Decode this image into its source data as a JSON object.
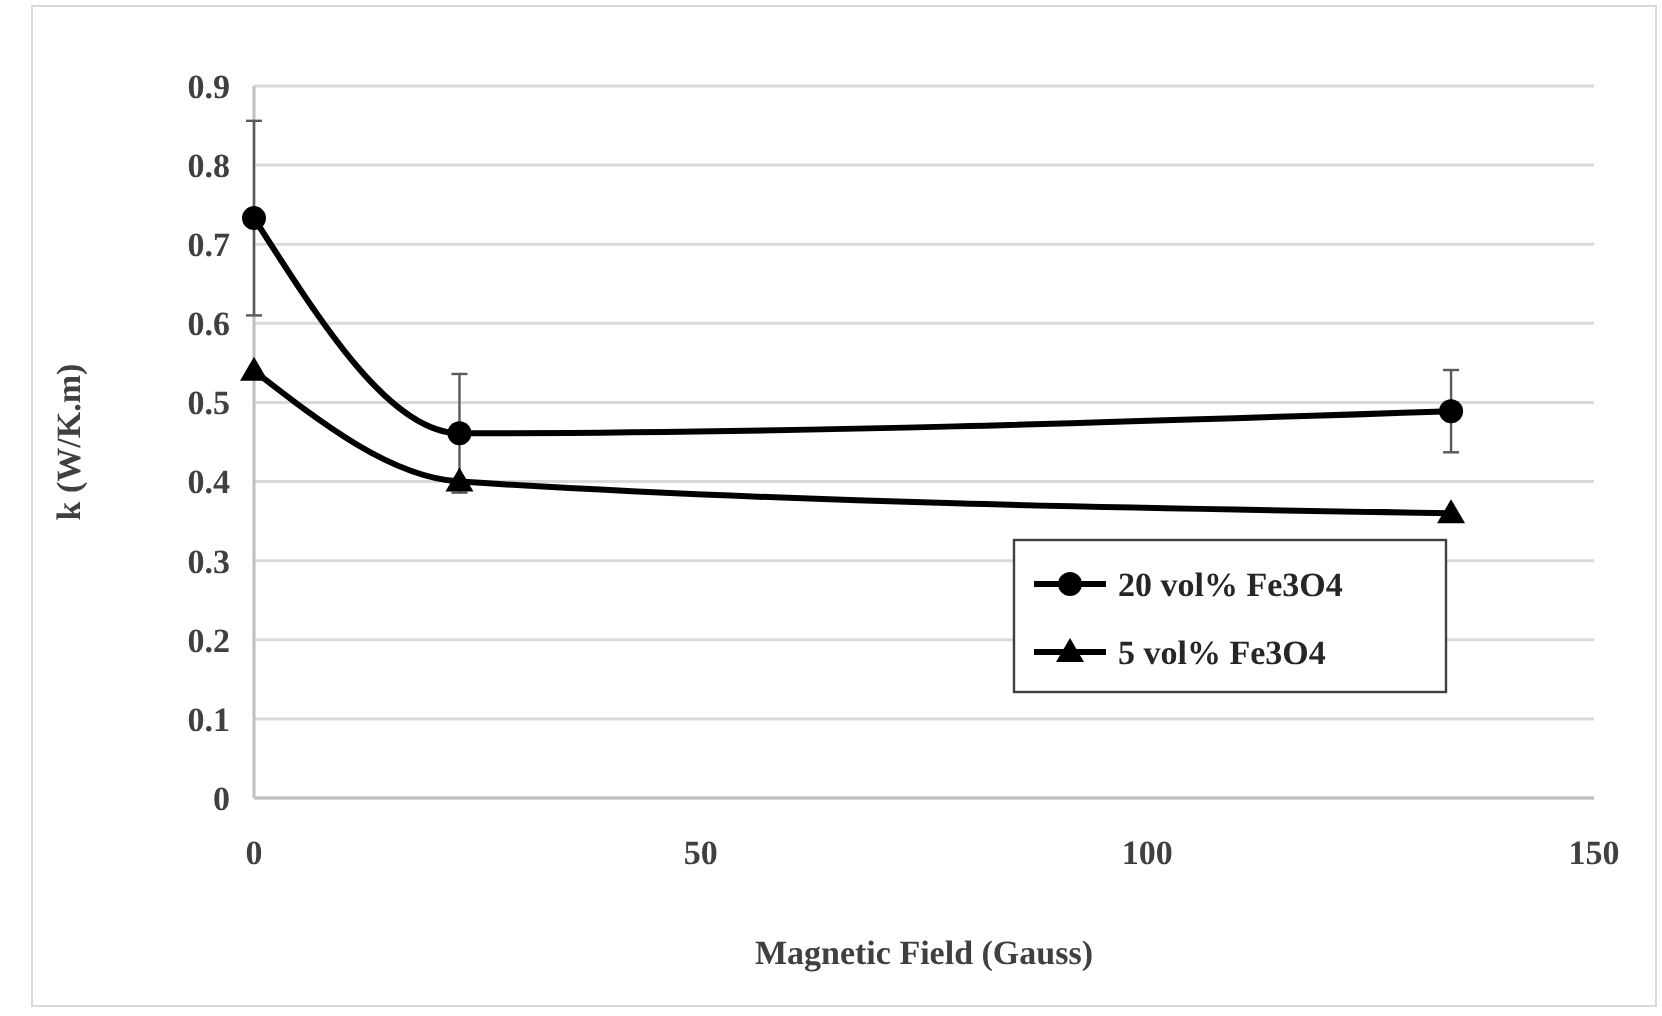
{
  "chart_data": {
    "type": "line",
    "xlabel": "Magnetic Field (Gauss)",
    "ylabel": "k (W/K.m)",
    "x": [
      0,
      23,
      134
    ],
    "series": [
      {
        "name": "20 vol% Fe3O4",
        "color": "#000000",
        "marker": "circle",
        "values": [
          0.733,
          0.461,
          0.489
        ],
        "errors": [
          0.123,
          0.075,
          0.052
        ]
      },
      {
        "name": "5 vol% Fe3O4",
        "color": "#000000",
        "marker": "triangle",
        "values": [
          0.54,
          0.4,
          0.36
        ]
      }
    ],
    "xlim": [
      0,
      150
    ],
    "xticks": [
      0,
      50,
      100,
      150
    ],
    "ylim": [
      0,
      0.9
    ],
    "yticks": [
      0,
      0.1,
      0.2,
      0.3,
      0.4,
      0.5,
      0.6,
      0.7,
      0.8,
      0.9
    ],
    "grid": "y",
    "legend": "bottom right",
    "line_style": "solid"
  }
}
